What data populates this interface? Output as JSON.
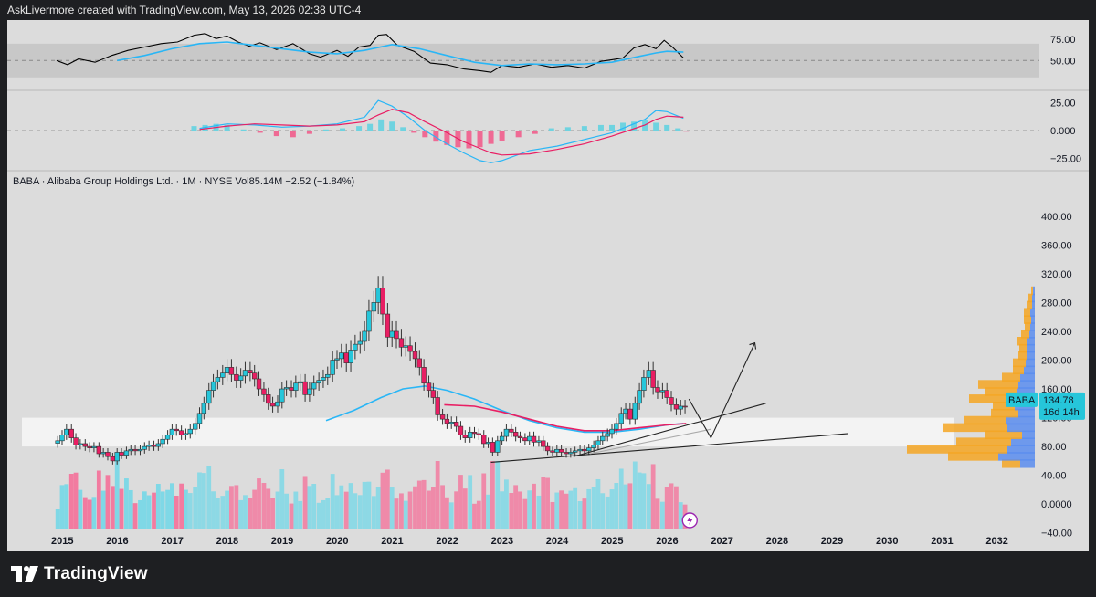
{
  "header": {
    "text": "AskLivermore created with TradingView.com, May 13, 2026 02:38 UTC-4"
  },
  "footer": {
    "brand": "TradingView"
  },
  "colors": {
    "up": "#26c6da",
    "down": "#e91e63",
    "rsi_line": "#000000",
    "rsi_ma": "#29b6f6",
    "macd_line": "#29b6f6",
    "signal_line": "#e91e63",
    "ma_pink": "#e91e63",
    "ma_blue": "#29b6f6",
    "profile_orange": "#f5a623",
    "profile_blue": "#5b8def",
    "price_label_bg": "#26c6da"
  },
  "legend": {
    "text": "BABA · Alibaba Group Holdings Ltd. · 1M · NYSE  Vol85.14M  −2.52 (−1.84%)"
  },
  "price_label": {
    "symbol": "BABA",
    "price": "134.78",
    "countdown": "16d 14h"
  },
  "chart_data": [
    {
      "type": "line",
      "name": "RSI pane",
      "y_ticks": [
        "75.00",
        "50.00"
      ],
      "ylim": [
        20,
        85
      ],
      "band": [
        30,
        70
      ],
      "series": [
        {
          "x": [
            2014.9,
            2015.1,
            2015.3,
            2015.6,
            2015.9,
            2016.2,
            2016.5,
            2016.8,
            2017.1,
            2017.4,
            2017.6,
            2017.8,
            2018.0,
            2018.2,
            2018.4,
            2018.6,
            2018.9,
            2019.2,
            2019.5,
            2019.7,
            2020.0,
            2020.2,
            2020.4,
            2020.6,
            2020.75,
            2020.9,
            2021.1,
            2021.4,
            2021.7,
            2022.0,
            2022.3,
            2022.6,
            2022.8,
            2023.0,
            2023.3,
            2023.6,
            2023.9,
            2024.2,
            2024.5,
            2024.8,
            2025.0,
            2025.2,
            2025.4,
            2025.6,
            2025.8,
            2025.95,
            2026.1,
            2026.3
          ],
          "values": [
            50,
            45,
            52,
            48,
            56,
            62,
            66,
            70,
            72,
            80,
            82,
            76,
            79,
            72,
            67,
            71,
            63,
            70,
            58,
            54,
            62,
            55,
            66,
            68,
            80,
            81,
            68,
            61,
            47,
            45,
            40,
            38,
            36,
            44,
            42,
            46,
            42,
            44,
            41,
            49,
            51,
            53,
            65,
            69,
            64,
            74,
            66,
            53
          ]
        },
        {
          "x": [
            2016.0,
            2016.5,
            2017.0,
            2017.5,
            2018.0,
            2018.5,
            2019.0,
            2019.5,
            2020.0,
            2020.5,
            2021.0,
            2021.5,
            2022.0,
            2022.5,
            2023.0,
            2023.5,
            2024.0,
            2024.5,
            2025.0,
            2025.5,
            2025.8,
            2026.0,
            2026.3
          ],
          "values": [
            50,
            56,
            64,
            70,
            72,
            68,
            64,
            60,
            58,
            62,
            69,
            64,
            56,
            48,
            44,
            46,
            45,
            46,
            48,
            55,
            59,
            61,
            60
          ]
        }
      ]
    },
    {
      "type": "line",
      "name": "MACD pane",
      "y_ticks": [
        "25.00",
        "0.000",
        "−25.00"
      ],
      "ylim": [
        -32,
        32
      ],
      "x": [
        2017.5,
        2018.0,
        2018.5,
        2019.0,
        2019.5,
        2020.0,
        2020.5,
        2020.75,
        2021.0,
        2021.3,
        2021.6,
        2022.0,
        2022.3,
        2022.6,
        2022.8,
        2023.0,
        2023.5,
        2024.0,
        2024.5,
        2025.0,
        2025.3,
        2025.6,
        2025.8,
        2026.0,
        2026.3
      ],
      "macd": [
        2,
        6,
        5,
        3,
        4,
        6,
        12,
        27,
        22,
        12,
        0,
        -12,
        -20,
        -27,
        -29,
        -27,
        -18,
        -14,
        -8,
        -2,
        4,
        10,
        18,
        17,
        11
      ],
      "signal": [
        1,
        4,
        6,
        5,
        4,
        5,
        8,
        14,
        19,
        16,
        8,
        -2,
        -10,
        -16,
        -20,
        -22,
        -21,
        -17,
        -12,
        -5,
        0,
        5,
        10,
        13,
        12
      ],
      "histogram_x": [
        2017.4,
        2017.6,
        2017.8,
        2018.0,
        2018.3,
        2018.6,
        2018.9,
        2019.2,
        2019.5,
        2019.8,
        2020.1,
        2020.4,
        2020.6,
        2020.8,
        2021.0,
        2021.2,
        2021.4,
        2021.6,
        2021.8,
        2022.0,
        2022.2,
        2022.4,
        2022.6,
        2022.8,
        2023.0,
        2023.3,
        2023.6,
        2023.9,
        2024.2,
        2024.5,
        2024.8,
        2025.0,
        2025.2,
        2025.4,
        2025.6,
        2025.8,
        2026.0,
        2026.2,
        2026.35
      ],
      "histogram": [
        4,
        5,
        6,
        5,
        1,
        -2,
        -5,
        -6,
        -3,
        1,
        2,
        4,
        6,
        10,
        8,
        3,
        -2,
        -6,
        -10,
        -13,
        -15,
        -16,
        -15,
        -12,
        -9,
        -6,
        -3,
        2,
        3,
        4,
        5,
        5,
        7,
        8,
        9,
        7,
        5,
        2,
        -1
      ]
    },
    {
      "type": "candlestick",
      "name": "BABA monthly",
      "y_ticks": [
        "400.00",
        "360.00",
        "320.00",
        "280.00",
        "240.00",
        "200.00",
        "160.00",
        "120.00",
        "80.00",
        "40.00",
        "0.0000",
        "−40.00"
      ],
      "ylim": [
        -50,
        420
      ],
      "x_ticks": [
        "2015",
        "2016",
        "2017",
        "2018",
        "2019",
        "2020",
        "2021",
        "2022",
        "2023",
        "2024",
        "2025",
        "2026",
        "2027",
        "2028",
        "2029",
        "2030",
        "2031",
        "2032"
      ],
      "candles_x": [
        2014.92,
        2015.0,
        2015.08,
        2015.17,
        2015.25,
        2015.33,
        2015.42,
        2015.5,
        2015.58,
        2015.67,
        2015.75,
        2015.83,
        2015.92,
        2016.0,
        2016.08,
        2016.17,
        2016.25,
        2016.33,
        2016.42,
        2016.5,
        2016.58,
        2016.67,
        2016.75,
        2016.83,
        2016.92,
        2017.0,
        2017.08,
        2017.17,
        2017.25,
        2017.33,
        2017.42,
        2017.5,
        2017.58,
        2017.67,
        2017.75,
        2017.83,
        2017.92,
        2018.0,
        2018.08,
        2018.17,
        2018.25,
        2018.33,
        2018.42,
        2018.5,
        2018.58,
        2018.67,
        2018.75,
        2018.83,
        2018.92,
        2019.0,
        2019.08,
        2019.17,
        2019.25,
        2019.33,
        2019.42,
        2019.5,
        2019.58,
        2019.67,
        2019.75,
        2019.83,
        2019.92,
        2020.0,
        2020.08,
        2020.17,
        2020.25,
        2020.33,
        2020.42,
        2020.5,
        2020.58,
        2020.67,
        2020.75,
        2020.83,
        2020.92,
        2021.0,
        2021.08,
        2021.17,
        2021.25,
        2021.33,
        2021.42,
        2021.5,
        2021.58,
        2021.67,
        2021.75,
        2021.83,
        2021.92,
        2022.0,
        2022.08,
        2022.17,
        2022.25,
        2022.33,
        2022.42,
        2022.5,
        2022.58,
        2022.67,
        2022.75,
        2022.83,
        2022.92,
        2023.0,
        2023.08,
        2023.17,
        2023.25,
        2023.33,
        2023.42,
        2023.5,
        2023.58,
        2023.67,
        2023.75,
        2023.83,
        2023.92,
        2024.0,
        2024.08,
        2024.17,
        2024.25,
        2024.33,
        2024.42,
        2024.5,
        2024.58,
        2024.67,
        2024.75,
        2024.83,
        2024.92,
        2025.0,
        2025.08,
        2025.17,
        2025.25,
        2025.33,
        2025.42,
        2025.5,
        2025.58,
        2025.67,
        2025.75,
        2025.83,
        2025.92,
        2026.0,
        2026.08,
        2026.17,
        2026.25,
        2026.33
      ],
      "close": [
        88,
        96,
        104,
        92,
        82,
        84,
        80,
        78,
        80,
        70,
        72,
        66,
        60,
        72,
        68,
        74,
        76,
        74,
        76,
        80,
        82,
        80,
        84,
        90,
        96,
        104,
        102,
        96,
        98,
        104,
        112,
        126,
        140,
        158,
        170,
        176,
        182,
        190,
        180,
        172,
        178,
        186,
        182,
        174,
        160,
        152,
        140,
        136,
        142,
        160,
        162,
        158,
        168,
        170,
        152,
        160,
        168,
        172,
        176,
        180,
        200,
        202,
        210,
        196,
        214,
        222,
        226,
        240,
        268,
        280,
        300,
        264,
        232,
        240,
        230,
        218,
        220,
        212,
        202,
        190,
        168,
        158,
        148,
        124,
        118,
        112,
        114,
        108,
        96,
        92,
        100,
        98,
        96,
        84,
        86,
        72,
        88,
        94,
        104,
        100,
        94,
        92,
        88,
        94,
        86,
        88,
        80,
        74,
        72,
        76,
        72,
        70,
        72,
        74,
        76,
        74,
        78,
        82,
        88,
        94,
        98,
        104,
        112,
        126,
        132,
        118,
        140,
        158,
        176,
        186,
        162,
        156,
        158,
        148,
        138,
        132,
        136,
        134.78
      ],
      "moving_average_1": {
        "x": [
          2019.8,
          2020.3,
          2020.8,
          2021.2,
          2021.6,
          2022.0,
          2022.5,
          2023.0,
          2023.5,
          2024.0,
          2024.5,
          2025.0,
          2025.5,
          2026.0,
          2026.3
        ],
        "values": [
          116,
          130,
          148,
          160,
          164,
          158,
          146,
          130,
          116,
          106,
          100,
          100,
          104,
          110,
          112
        ]
      },
      "moving_average_2": {
        "x": [
          2021.95,
          2022.5,
          2023.0,
          2023.5,
          2024.0,
          2024.5,
          2025.0,
          2025.5,
          2026.0,
          2026.35
        ],
        "values": [
          138,
          136,
          128,
          118,
          108,
          102,
          102,
          106,
          110,
          112
        ]
      },
      "projection": {
        "x": [
          2026.4,
          2026.8,
          2027.6
        ],
        "values": [
          146,
          92,
          224
        ]
      },
      "trendlines": [
        {
          "x": [
            2022.8,
            2029.3
          ],
          "values": [
            58,
            98
          ]
        },
        {
          "x": [
            2024.3,
            2027.8
          ],
          "values": [
            66,
            140
          ]
        },
        {
          "x": [
            2024.6,
            2026.8
          ],
          "values": [
            70,
            104
          ]
        }
      ],
      "zone": [
        80,
        120
      ],
      "volume_profile_levels": [
        56,
        66,
        76,
        86,
        96,
        106,
        116,
        126,
        136,
        146,
        156,
        166,
        176,
        186,
        196,
        206,
        216,
        226,
        236,
        246,
        256,
        266,
        276,
        286,
        296
      ],
      "volume_profile_orange": [
        20,
        55,
        110,
        60,
        40,
        70,
        45,
        30,
        24,
        46,
        35,
        44,
        20,
        12,
        14,
        10,
        8,
        12,
        9,
        6,
        8,
        7,
        5,
        4,
        2
      ],
      "volume_profile_blue": [
        16,
        40,
        30,
        26,
        14,
        30,
        32,
        18,
        22,
        26,
        20,
        18,
        16,
        12,
        10,
        8,
        9,
        8,
        6,
        5,
        4,
        5,
        3,
        3,
        2
      ]
    }
  ]
}
